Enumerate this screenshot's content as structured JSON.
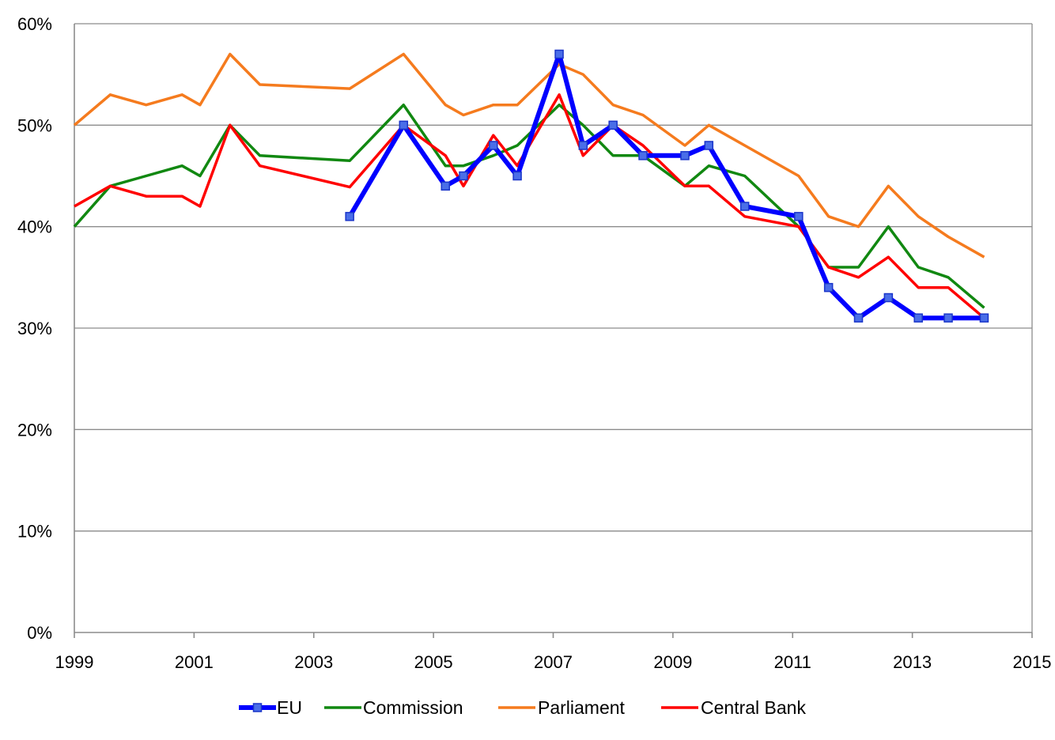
{
  "chart_data": {
    "type": "line",
    "title": "",
    "xlabel": "",
    "ylabel": "",
    "xlim": [
      1999,
      2015
    ],
    "ylim": [
      0,
      60
    ],
    "x_ticks": [
      {
        "value": 1999,
        "label": "1999"
      },
      {
        "value": 2001,
        "label": "2001"
      },
      {
        "value": 2003,
        "label": "2003"
      },
      {
        "value": 2005,
        "label": "2005"
      },
      {
        "value": 2007,
        "label": "2007"
      },
      {
        "value": 2009,
        "label": "2009"
      },
      {
        "value": 2011,
        "label": "2011"
      },
      {
        "value": 2013,
        "label": "2013"
      },
      {
        "value": 2015,
        "label": "2015"
      }
    ],
    "y_ticks": [
      {
        "value": 0,
        "label": "0%"
      },
      {
        "value": 10,
        "label": "10%"
      },
      {
        "value": 20,
        "label": "20%"
      },
      {
        "value": 30,
        "label": "30%"
      },
      {
        "value": 40,
        "label": "40%"
      },
      {
        "value": 50,
        "label": "50%"
      },
      {
        "value": 60,
        "label": "60%"
      }
    ],
    "grid": "horizontal",
    "legend_position": "bottom",
    "series": [
      {
        "name": "EU",
        "color": "#0000ff",
        "marker": "square",
        "points": [
          [
            2003.6,
            41
          ],
          [
            2004.5,
            50
          ],
          [
            2005.2,
            44
          ],
          [
            2005.5,
            45
          ],
          [
            2006.0,
            48
          ],
          [
            2006.4,
            45
          ],
          [
            2007.1,
            57
          ],
          [
            2007.5,
            48
          ],
          [
            2008.0,
            50
          ],
          [
            2008.5,
            47
          ],
          [
            2009.2,
            47
          ],
          [
            2009.6,
            48
          ],
          [
            2010.2,
            42
          ],
          [
            2011.1,
            41
          ],
          [
            2011.6,
            34
          ],
          [
            2012.1,
            31
          ],
          [
            2012.6,
            33
          ],
          [
            2013.1,
            31
          ],
          [
            2013.6,
            31
          ],
          [
            2014.2,
            31
          ]
        ]
      },
      {
        "name": "Commission",
        "color": "#118811",
        "marker": "none",
        "points": [
          [
            1999.0,
            40
          ],
          [
            1999.6,
            44
          ],
          [
            2000.2,
            45
          ],
          [
            2000.8,
            46
          ],
          [
            2001.1,
            45
          ],
          [
            2001.6,
            50
          ],
          [
            2002.1,
            47
          ],
          [
            2003.6,
            46.5
          ],
          [
            2004.5,
            52
          ],
          [
            2005.2,
            46
          ],
          [
            2005.5,
            46
          ],
          [
            2006.0,
            47
          ],
          [
            2006.4,
            48
          ],
          [
            2007.1,
            52
          ],
          [
            2007.5,
            50
          ],
          [
            2008.0,
            47
          ],
          [
            2008.5,
            47
          ],
          [
            2009.2,
            44
          ],
          [
            2009.6,
            46
          ],
          [
            2010.2,
            45
          ],
          [
            2011.1,
            40
          ],
          [
            2011.6,
            36
          ],
          [
            2012.1,
            36
          ],
          [
            2012.6,
            40
          ],
          [
            2013.1,
            36
          ],
          [
            2013.6,
            35
          ],
          [
            2014.2,
            32
          ]
        ]
      },
      {
        "name": "Parliament",
        "color": "#f57b1e",
        "marker": "none",
        "points": [
          [
            1999.0,
            50
          ],
          [
            1999.6,
            53
          ],
          [
            2000.2,
            52
          ],
          [
            2000.8,
            53
          ],
          [
            2001.1,
            52
          ],
          [
            2001.6,
            57
          ],
          [
            2002.1,
            54
          ],
          [
            2003.6,
            53.6
          ],
          [
            2004.5,
            57
          ],
          [
            2005.2,
            52
          ],
          [
            2005.5,
            51
          ],
          [
            2006.0,
            52
          ],
          [
            2006.4,
            52
          ],
          [
            2007.1,
            56
          ],
          [
            2007.5,
            55
          ],
          [
            2008.0,
            52
          ],
          [
            2008.5,
            51
          ],
          [
            2009.2,
            48
          ],
          [
            2009.6,
            50
          ],
          [
            2010.2,
            48
          ],
          [
            2011.1,
            45
          ],
          [
            2011.6,
            41
          ],
          [
            2012.1,
            40
          ],
          [
            2012.6,
            44
          ],
          [
            2013.1,
            41
          ],
          [
            2013.6,
            39
          ],
          [
            2014.2,
            37
          ]
        ]
      },
      {
        "name": "Central Bank",
        "color": "#ff0000",
        "marker": "none",
        "points": [
          [
            1999.0,
            42
          ],
          [
            1999.6,
            44
          ],
          [
            2000.2,
            43
          ],
          [
            2000.8,
            43
          ],
          [
            2001.1,
            42
          ],
          [
            2001.6,
            50
          ],
          [
            2002.1,
            46
          ],
          [
            2003.6,
            43.9
          ],
          [
            2004.5,
            50
          ],
          [
            2005.2,
            47
          ],
          [
            2005.5,
            44
          ],
          [
            2006.0,
            49
          ],
          [
            2006.4,
            46
          ],
          [
            2007.1,
            53
          ],
          [
            2007.5,
            47
          ],
          [
            2008.0,
            50
          ],
          [
            2008.5,
            48
          ],
          [
            2009.2,
            44
          ],
          [
            2009.6,
            44
          ],
          [
            2010.2,
            41
          ],
          [
            2011.1,
            40
          ],
          [
            2011.6,
            36
          ],
          [
            2012.1,
            35
          ],
          [
            2012.6,
            37
          ],
          [
            2013.1,
            34
          ],
          [
            2013.6,
            34
          ],
          [
            2014.2,
            31
          ]
        ]
      }
    ]
  }
}
